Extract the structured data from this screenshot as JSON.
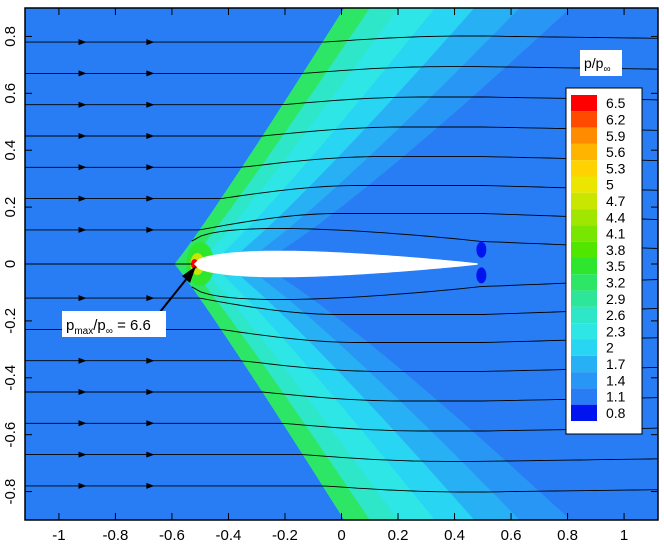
{
  "chart_data": {
    "type": "heatmap",
    "subtype": "filled-contour-with-streamlines",
    "xlim": [
      -1.12,
      1.12
    ],
    "ylim": [
      -0.9,
      0.9
    ],
    "x_ticks": [
      "-1",
      "-0.8",
      "-0.6",
      "-0.4",
      "-0.2",
      "0",
      "0.2",
      "0.4",
      "0.6",
      "0.8",
      "1"
    ],
    "y_ticks": [
      "0.8",
      "0.6",
      "0.4",
      "0.2",
      "0",
      "-0.2",
      "-0.4",
      "-0.6",
      "-0.8"
    ],
    "legend": {
      "title_main": "p/p",
      "title_sub": "∞",
      "placement": "right",
      "levels": [
        "6.5",
        "6.2",
        "5.9",
        "5.6",
        "5.3",
        "5",
        "4.7",
        "4.4",
        "4.1",
        "3.8",
        "3.5",
        "3.2",
        "2.9",
        "2.6",
        "2.3",
        "2",
        "1.7",
        "1.4",
        "1.1",
        "0.8"
      ],
      "colors": [
        "#ff0000",
        "#ff4a00",
        "#ff8c00",
        "#ffb400",
        "#ffd200",
        "#ebe600",
        "#c8e600",
        "#a0e600",
        "#78e600",
        "#50e600",
        "#2ee62e",
        "#2ee666",
        "#2ee69a",
        "#2ee6c8",
        "#2ee6e6",
        "#28d6f4",
        "#28b0f4",
        "#2896f4",
        "#287cf4",
        "#0014f0"
      ]
    },
    "annotation": {
      "text_p": "p",
      "text_sub": "max",
      "text_mid": "/p",
      "text_sub2": "∞",
      "text_val": " = 6.6",
      "point": [
        -0.52,
        0.0
      ],
      "value": 6.6
    },
    "streamline_y0": [
      0.78,
      0.67,
      0.56,
      0.45,
      0.34,
      0.23,
      0.12,
      0.0,
      -0.12,
      -0.23,
      -0.34,
      -0.45,
      -0.56,
      -0.67,
      -0.78
    ],
    "shock_levels": [
      1.1,
      1.4,
      1.7,
      2.0,
      2.3,
      2.6,
      3.2
    ]
  }
}
